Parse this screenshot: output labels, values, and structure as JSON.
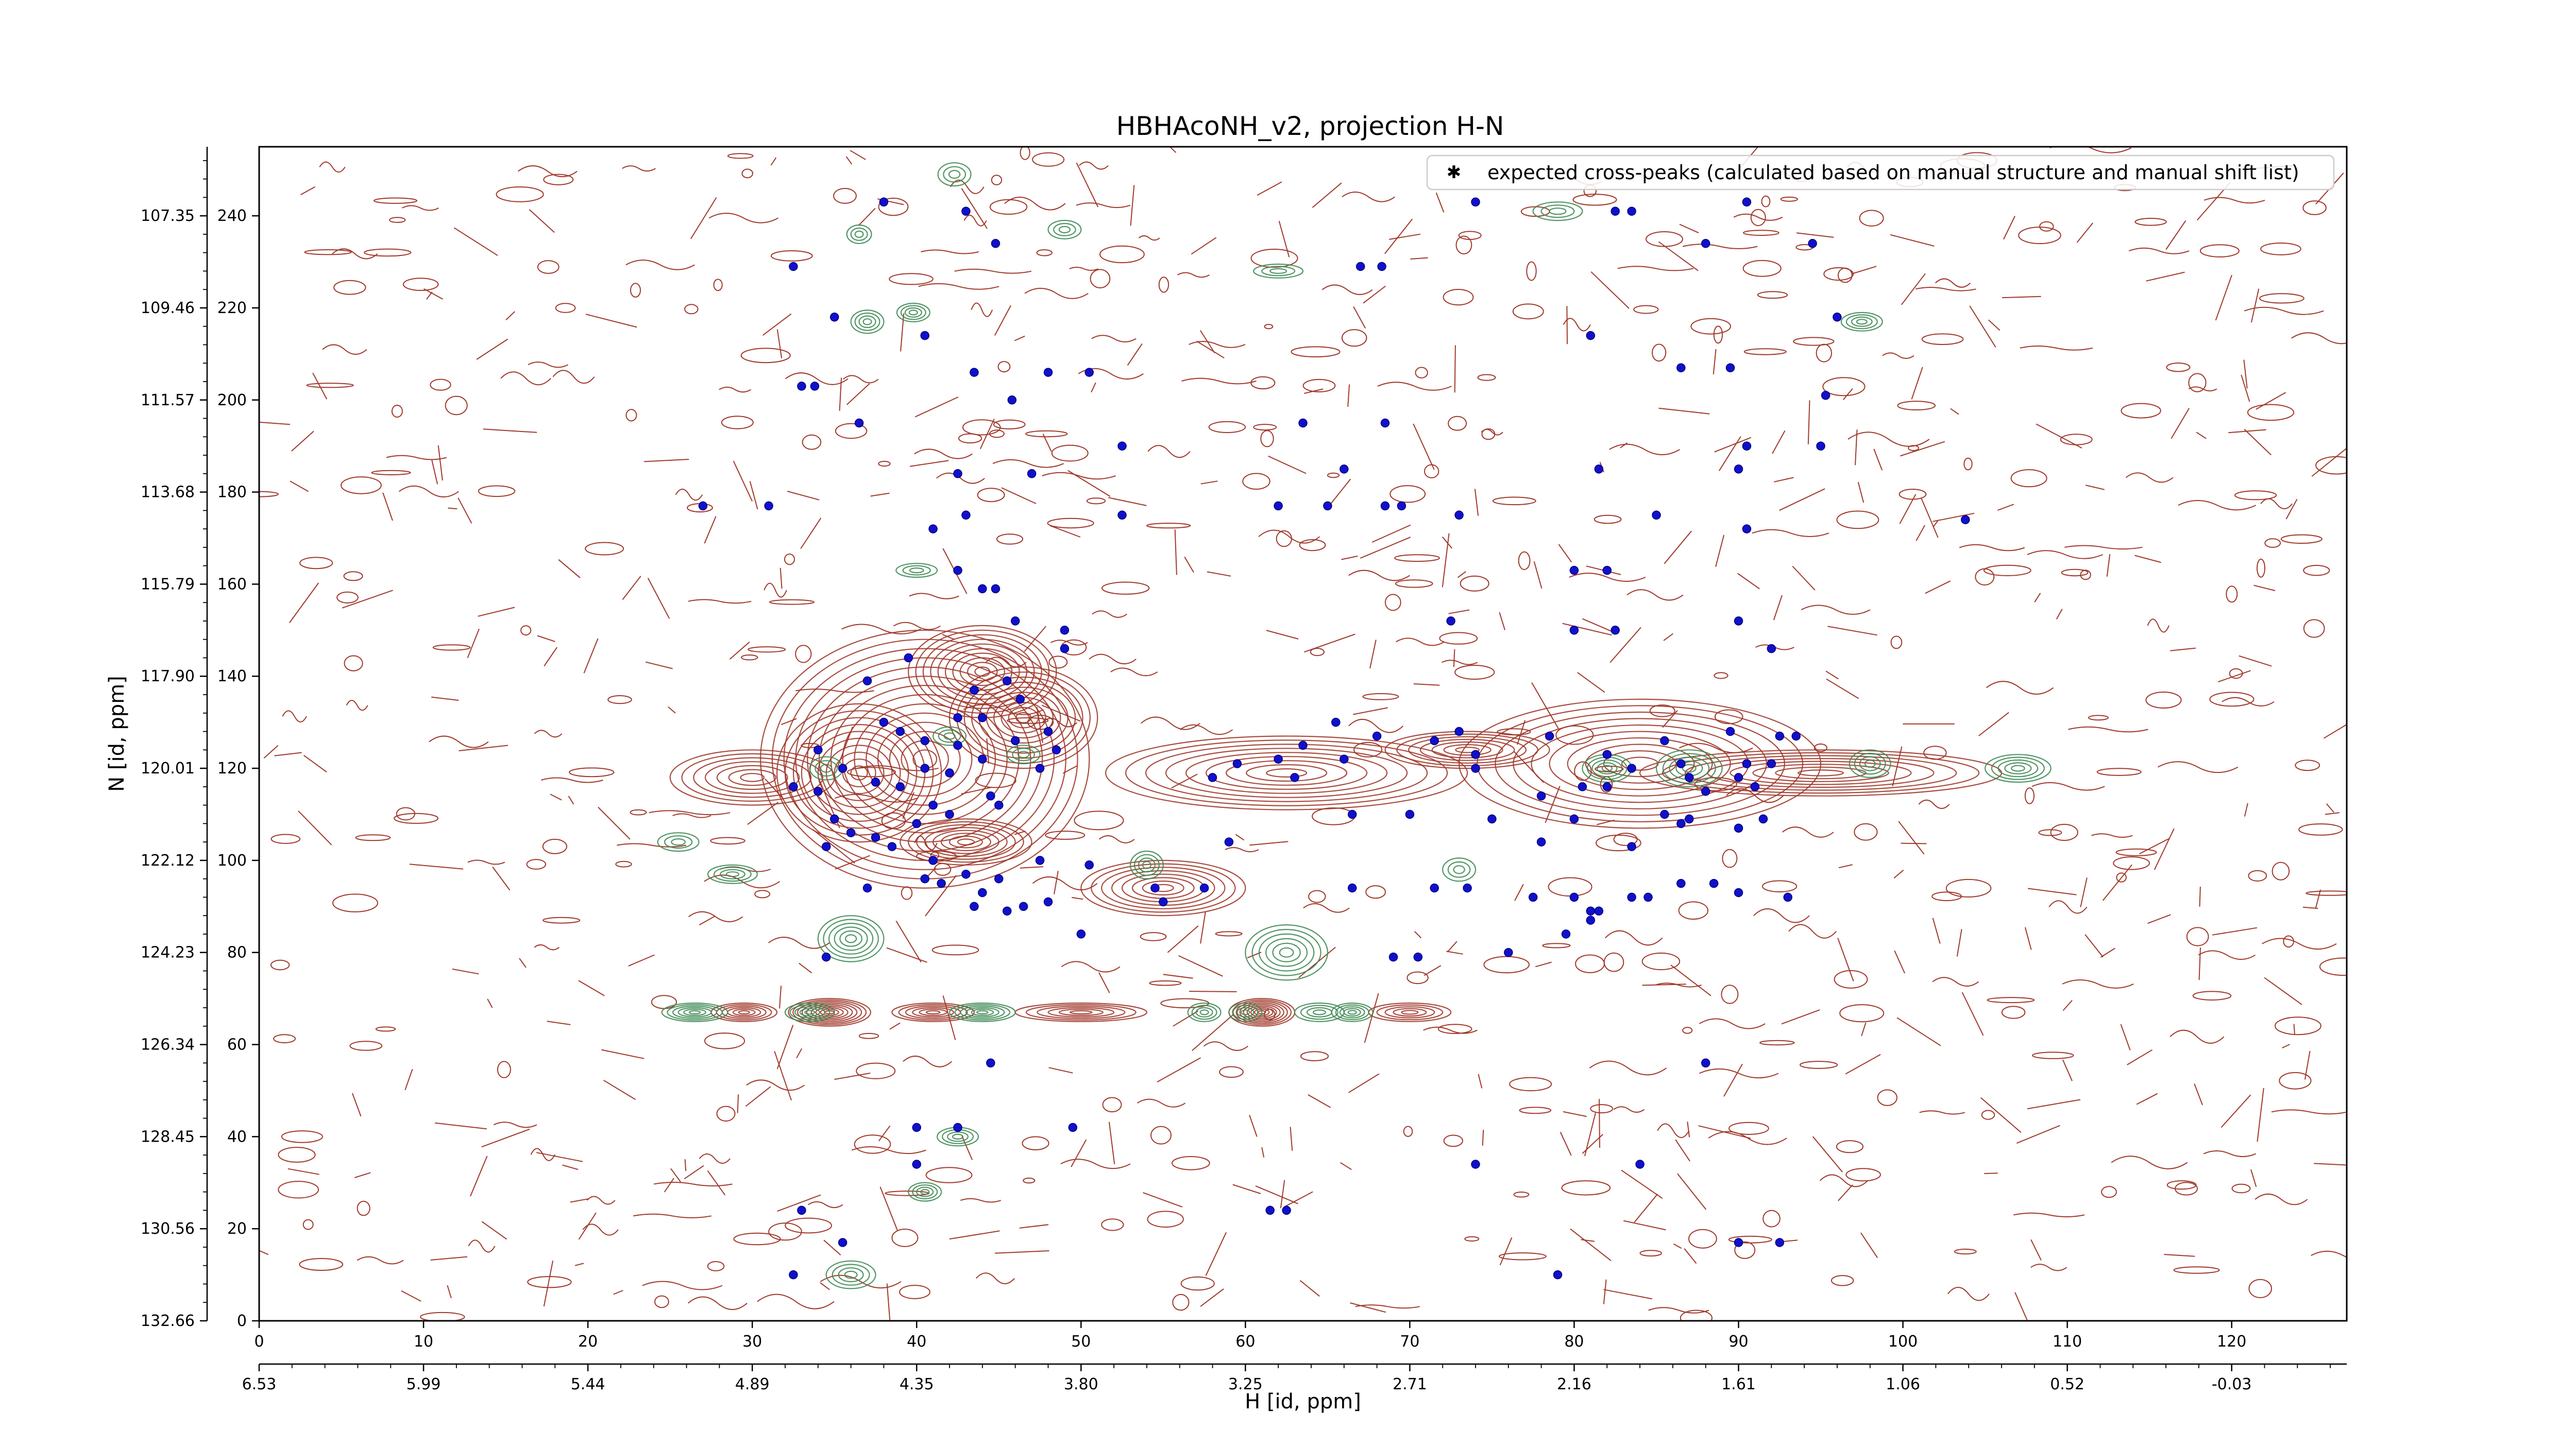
{
  "chart_data": {
    "type": "scatter",
    "title": "HBHAcoNH_v2, projection H-N",
    "xlabel": "H [id, ppm]",
    "ylabel": "N [id, ppm]",
    "xlim": [
      0,
      127
    ],
    "ylim": [
      0,
      255
    ],
    "x_ticks": [
      0,
      10,
      20,
      30,
      40,
      50,
      60,
      70,
      80,
      90,
      100,
      110,
      120
    ],
    "x_ticks_ppm": [
      "6.53",
      "5.99",
      "5.44",
      "4.89",
      "4.35",
      "3.80",
      "3.25",
      "2.71",
      "2.16",
      "1.61",
      "1.06",
      "0.52",
      "-0.03"
    ],
    "y_ticks": [
      0,
      20,
      40,
      60,
      80,
      100,
      120,
      140,
      160,
      180,
      200,
      220,
      240
    ],
    "y_ticks_ppm": [
      "132.66",
      "130.56",
      "128.45",
      "126.34",
      "124.23",
      "122.12",
      "120.01",
      "117.90",
      "115.79",
      "113.68",
      "111.57",
      "109.46",
      "107.35"
    ],
    "legend": {
      "position": "top-right",
      "label": "expected cross-peaks (calculated based on manual structure and manual shift list)"
    },
    "colors": {
      "positive_contours": "#a0392b",
      "negative_contours": "#3f8a55",
      "peaks": "#1010cc"
    },
    "contours": [
      {
        "x": 40.5,
        "y": 122,
        "w": 20,
        "h": 56,
        "sign": "pos",
        "levels": 14
      },
      {
        "x": 36.5,
        "y": 119,
        "w": 10,
        "h": 30,
        "sign": "pos",
        "levels": 10
      },
      {
        "x": 46.5,
        "y": 131,
        "w": 9,
        "h": 22,
        "sign": "pos",
        "levels": 10
      },
      {
        "x": 44,
        "y": 141,
        "w": 9,
        "h": 20,
        "sign": "pos",
        "levels": 10
      },
      {
        "x": 62.5,
        "y": 119,
        "w": 22,
        "h": 16,
        "sign": "pos",
        "levels": 9
      },
      {
        "x": 84,
        "y": 121,
        "w": 22,
        "h": 28,
        "sign": "pos",
        "levels": 10
      },
      {
        "x": 95,
        "y": 119,
        "w": 22,
        "h": 10,
        "sign": "pos",
        "levels": 8
      },
      {
        "x": 55,
        "y": 94,
        "w": 10,
        "h": 12,
        "sign": "pos",
        "levels": 8
      },
      {
        "x": 30,
        "y": 118,
        "w": 10,
        "h": 12,
        "sign": "pos",
        "levels": 7
      },
      {
        "x": 73.5,
        "y": 124,
        "w": 10,
        "h": 8,
        "sign": "pos",
        "levels": 7
      },
      {
        "x": 43,
        "y": 104,
        "w": 8,
        "h": 10,
        "sign": "pos",
        "levels": 8
      },
      {
        "x": 34.7,
        "y": 67,
        "w": 5,
        "h": 6,
        "sign": "pos",
        "levels": 9
      },
      {
        "x": 61,
        "y": 67,
        "w": 4,
        "h": 6,
        "sign": "pos",
        "levels": 9
      },
      {
        "x": 50,
        "y": 67,
        "w": 8,
        "h": 4,
        "sign": "pos",
        "levels": 6
      },
      {
        "x": 41,
        "y": 67,
        "w": 5,
        "h": 4,
        "sign": "pos",
        "levels": 6
      },
      {
        "x": 29.5,
        "y": 67,
        "w": 4,
        "h": 4,
        "sign": "pos",
        "levels": 6
      },
      {
        "x": 70,
        "y": 67,
        "w": 5,
        "h": 4,
        "sign": "pos",
        "levels": 5
      },
      {
        "x": 36,
        "y": 83,
        "w": 4,
        "h": 10,
        "sign": "neg",
        "levels": 6
      },
      {
        "x": 62.5,
        "y": 80,
        "w": 5,
        "h": 12,
        "sign": "neg",
        "levels": 6
      },
      {
        "x": 26.5,
        "y": 67,
        "w": 4,
        "h": 4,
        "sign": "neg",
        "levels": 6
      },
      {
        "x": 33.5,
        "y": 67,
        "w": 3,
        "h": 4,
        "sign": "neg",
        "levels": 5
      },
      {
        "x": 44,
        "y": 67,
        "w": 4,
        "h": 4,
        "sign": "neg",
        "levels": 6
      },
      {
        "x": 57.5,
        "y": 67,
        "w": 2,
        "h": 4,
        "sign": "neg",
        "levels": 4
      },
      {
        "x": 60,
        "y": 67,
        "w": 2,
        "h": 4,
        "sign": "neg",
        "levels": 4
      },
      {
        "x": 64.5,
        "y": 67,
        "w": 3,
        "h": 4,
        "sign": "neg",
        "levels": 4
      },
      {
        "x": 66.5,
        "y": 67,
        "w": 2.5,
        "h": 4,
        "sign": "neg",
        "levels": 5
      },
      {
        "x": 87,
        "y": 120,
        "w": 4,
        "h": 8,
        "sign": "neg",
        "levels": 5
      },
      {
        "x": 82,
        "y": 120,
        "w": 3,
        "h": 6,
        "sign": "neg",
        "levels": 5
      },
      {
        "x": 107,
        "y": 120,
        "w": 4,
        "h": 6,
        "sign": "neg",
        "levels": 5
      },
      {
        "x": 98,
        "y": 121,
        "w": 2.5,
        "h": 6,
        "sign": "neg",
        "levels": 4
      },
      {
        "x": 28.8,
        "y": 97,
        "w": 3,
        "h": 4,
        "sign": "neg",
        "levels": 4
      },
      {
        "x": 42.5,
        "y": 40,
        "w": 2.5,
        "h": 4,
        "sign": "neg",
        "levels": 4
      },
      {
        "x": 40.5,
        "y": 28,
        "w": 2,
        "h": 4,
        "sign": "neg",
        "levels": 4
      },
      {
        "x": 36,
        "y": 10,
        "w": 3,
        "h": 6,
        "sign": "neg",
        "levels": 4
      },
      {
        "x": 37,
        "y": 217,
        "w": 2,
        "h": 5,
        "sign": "neg",
        "levels": 4
      },
      {
        "x": 39.8,
        "y": 219,
        "w": 2,
        "h": 4,
        "sign": "neg",
        "levels": 4
      },
      {
        "x": 49,
        "y": 237,
        "w": 2,
        "h": 4,
        "sign": "neg",
        "levels": 3
      },
      {
        "x": 62,
        "y": 228,
        "w": 3,
        "h": 3,
        "sign": "neg",
        "levels": 3
      },
      {
        "x": 79,
        "y": 241,
        "w": 3,
        "h": 4,
        "sign": "neg",
        "levels": 3
      },
      {
        "x": 97.5,
        "y": 217,
        "w": 2.5,
        "h": 4,
        "sign": "neg",
        "levels": 4
      },
      {
        "x": 40,
        "y": 163,
        "w": 2.5,
        "h": 3,
        "sign": "neg",
        "levels": 3
      },
      {
        "x": 54,
        "y": 99,
        "w": 2,
        "h": 6,
        "sign": "neg",
        "levels": 4
      },
      {
        "x": 73,
        "y": 98,
        "w": 2,
        "h": 5,
        "sign": "neg",
        "levels": 3
      },
      {
        "x": 42,
        "y": 127,
        "w": 2,
        "h": 4,
        "sign": "neg",
        "levels": 3
      },
      {
        "x": 46.5,
        "y": 123,
        "w": 2,
        "h": 4,
        "sign": "neg",
        "levels": 3
      },
      {
        "x": 34.5,
        "y": 120,
        "w": 2,
        "h": 5,
        "sign": "neg",
        "levels": 3
      },
      {
        "x": 25.5,
        "y": 104,
        "w": 2.5,
        "h": 4,
        "sign": "neg",
        "levels": 3
      },
      {
        "x": 36.5,
        "y": 236,
        "w": 1.5,
        "h": 4,
        "sign": "neg",
        "levels": 3
      },
      {
        "x": 42.3,
        "y": 249,
        "w": 2,
        "h": 5,
        "sign": "neg",
        "levels": 3
      }
    ],
    "peaks": [
      {
        "x": 38.0,
        "y": 243
      },
      {
        "x": 43.0,
        "y": 241
      },
      {
        "x": 44.8,
        "y": 234
      },
      {
        "x": 74.0,
        "y": 243
      },
      {
        "x": 82.5,
        "y": 241
      },
      {
        "x": 83.5,
        "y": 241
      },
      {
        "x": 88.0,
        "y": 234
      },
      {
        "x": 90.5,
        "y": 243
      },
      {
        "x": 94.5,
        "y": 234
      },
      {
        "x": 32.5,
        "y": 229
      },
      {
        "x": 67.0,
        "y": 229
      },
      {
        "x": 68.3,
        "y": 229
      },
      {
        "x": 35.0,
        "y": 218
      },
      {
        "x": 40.5,
        "y": 214
      },
      {
        "x": 96.0,
        "y": 218
      },
      {
        "x": 81.0,
        "y": 214
      },
      {
        "x": 33.0,
        "y": 203
      },
      {
        "x": 33.8,
        "y": 203
      },
      {
        "x": 43.5,
        "y": 206
      },
      {
        "x": 48.0,
        "y": 206
      },
      {
        "x": 50.5,
        "y": 206
      },
      {
        "x": 45.8,
        "y": 200
      },
      {
        "x": 36.5,
        "y": 195
      },
      {
        "x": 86.5,
        "y": 207
      },
      {
        "x": 89.5,
        "y": 207
      },
      {
        "x": 95.3,
        "y": 201
      },
      {
        "x": 63.5,
        "y": 195
      },
      {
        "x": 68.5,
        "y": 195
      },
      {
        "x": 52.5,
        "y": 190
      },
      {
        "x": 66.0,
        "y": 185
      },
      {
        "x": 90.5,
        "y": 190
      },
      {
        "x": 95.0,
        "y": 190
      },
      {
        "x": 27.0,
        "y": 177
      },
      {
        "x": 31.0,
        "y": 177
      },
      {
        "x": 42.5,
        "y": 184
      },
      {
        "x": 47.0,
        "y": 184
      },
      {
        "x": 41.0,
        "y": 172
      },
      {
        "x": 43.0,
        "y": 175
      },
      {
        "x": 52.5,
        "y": 175
      },
      {
        "x": 62.0,
        "y": 177
      },
      {
        "x": 65.0,
        "y": 177
      },
      {
        "x": 68.5,
        "y": 177
      },
      {
        "x": 69.5,
        "y": 177
      },
      {
        "x": 73.0,
        "y": 175
      },
      {
        "x": 81.5,
        "y": 185
      },
      {
        "x": 85.0,
        "y": 175
      },
      {
        "x": 90.0,
        "y": 185
      },
      {
        "x": 90.5,
        "y": 172
      },
      {
        "x": 103.8,
        "y": 174
      },
      {
        "x": 42.5,
        "y": 163
      },
      {
        "x": 44.0,
        "y": 159
      },
      {
        "x": 44.8,
        "y": 159
      },
      {
        "x": 46.0,
        "y": 152
      },
      {
        "x": 49.0,
        "y": 150
      },
      {
        "x": 49.0,
        "y": 146
      },
      {
        "x": 80.0,
        "y": 163
      },
      {
        "x": 82.0,
        "y": 163
      },
      {
        "x": 72.5,
        "y": 152
      },
      {
        "x": 80.0,
        "y": 150
      },
      {
        "x": 82.5,
        "y": 150
      },
      {
        "x": 90.0,
        "y": 152
      },
      {
        "x": 92.0,
        "y": 146
      },
      {
        "x": 39.5,
        "y": 144
      },
      {
        "x": 37.0,
        "y": 139
      },
      {
        "x": 45.5,
        "y": 139
      },
      {
        "x": 46.3,
        "y": 135
      },
      {
        "x": 43.5,
        "y": 137
      },
      {
        "x": 42.5,
        "y": 131
      },
      {
        "x": 44.0,
        "y": 131
      },
      {
        "x": 38.0,
        "y": 130
      },
      {
        "x": 39.0,
        "y": 128
      },
      {
        "x": 40.5,
        "y": 126
      },
      {
        "x": 42.5,
        "y": 125
      },
      {
        "x": 48.0,
        "y": 128
      },
      {
        "x": 46.0,
        "y": 126
      },
      {
        "x": 48.5,
        "y": 124
      },
      {
        "x": 44.0,
        "y": 122
      },
      {
        "x": 47.5,
        "y": 120
      },
      {
        "x": 34.0,
        "y": 124
      },
      {
        "x": 35.5,
        "y": 120
      },
      {
        "x": 32.5,
        "y": 116
      },
      {
        "x": 34.0,
        "y": 115
      },
      {
        "x": 37.5,
        "y": 117
      },
      {
        "x": 39.0,
        "y": 116
      },
      {
        "x": 40.5,
        "y": 120
      },
      {
        "x": 41.0,
        "y": 112
      },
      {
        "x": 40.0,
        "y": 108
      },
      {
        "x": 42.0,
        "y": 119
      },
      {
        "x": 44.5,
        "y": 114
      },
      {
        "x": 42.0,
        "y": 110
      },
      {
        "x": 45.0,
        "y": 112
      },
      {
        "x": 36.0,
        "y": 106
      },
      {
        "x": 35.0,
        "y": 109
      },
      {
        "x": 34.5,
        "y": 103
      },
      {
        "x": 37.5,
        "y": 105
      },
      {
        "x": 37.0,
        "y": 94
      },
      {
        "x": 38.5,
        "y": 103
      },
      {
        "x": 40.5,
        "y": 96
      },
      {
        "x": 41.0,
        "y": 100
      },
      {
        "x": 41.5,
        "y": 95
      },
      {
        "x": 43.0,
        "y": 97
      },
      {
        "x": 43.5,
        "y": 90
      },
      {
        "x": 45.0,
        "y": 96
      },
      {
        "x": 44.0,
        "y": 93
      },
      {
        "x": 45.5,
        "y": 89
      },
      {
        "x": 46.5,
        "y": 90
      },
      {
        "x": 47.5,
        "y": 100
      },
      {
        "x": 48.0,
        "y": 91
      },
      {
        "x": 50.5,
        "y": 99
      },
      {
        "x": 50.0,
        "y": 84
      },
      {
        "x": 54.5,
        "y": 94
      },
      {
        "x": 55.0,
        "y": 91
      },
      {
        "x": 59.0,
        "y": 104
      },
      {
        "x": 57.5,
        "y": 94
      },
      {
        "x": 58.0,
        "y": 118
      },
      {
        "x": 59.5,
        "y": 121
      },
      {
        "x": 63.0,
        "y": 118
      },
      {
        "x": 62.0,
        "y": 122
      },
      {
        "x": 63.5,
        "y": 125
      },
      {
        "x": 65.5,
        "y": 130
      },
      {
        "x": 66.0,
        "y": 122
      },
      {
        "x": 66.5,
        "y": 110
      },
      {
        "x": 66.5,
        "y": 94
      },
      {
        "x": 68.0,
        "y": 127
      },
      {
        "x": 70.0,
        "y": 110
      },
      {
        "x": 71.5,
        "y": 126
      },
      {
        "x": 73.0,
        "y": 128
      },
      {
        "x": 74.0,
        "y": 120
      },
      {
        "x": 74.0,
        "y": 123
      },
      {
        "x": 73.5,
        "y": 94
      },
      {
        "x": 71.5,
        "y": 94
      },
      {
        "x": 75.0,
        "y": 109
      },
      {
        "x": 78.5,
        "y": 127
      },
      {
        "x": 78.0,
        "y": 114
      },
      {
        "x": 78.0,
        "y": 104
      },
      {
        "x": 77.5,
        "y": 92
      },
      {
        "x": 80.0,
        "y": 109
      },
      {
        "x": 80.5,
        "y": 116
      },
      {
        "x": 80.0,
        "y": 92
      },
      {
        "x": 82.0,
        "y": 123
      },
      {
        "x": 82.0,
        "y": 116
      },
      {
        "x": 83.5,
        "y": 120
      },
      {
        "x": 83.5,
        "y": 92
      },
      {
        "x": 84.5,
        "y": 92
      },
      {
        "x": 83.5,
        "y": 103
      },
      {
        "x": 85.5,
        "y": 110
      },
      {
        "x": 86.5,
        "y": 108
      },
      {
        "x": 85.5,
        "y": 126
      },
      {
        "x": 87.0,
        "y": 118
      },
      {
        "x": 86.5,
        "y": 121
      },
      {
        "x": 88.0,
        "y": 115
      },
      {
        "x": 87.0,
        "y": 109
      },
      {
        "x": 86.5,
        "y": 95
      },
      {
        "x": 88.5,
        "y": 95
      },
      {
        "x": 89.5,
        "y": 128
      },
      {
        "x": 90.0,
        "y": 118
      },
      {
        "x": 90.5,
        "y": 121
      },
      {
        "x": 90.0,
        "y": 107
      },
      {
        "x": 91.5,
        "y": 109
      },
      {
        "x": 92.0,
        "y": 121
      },
      {
        "x": 92.5,
        "y": 127
      },
      {
        "x": 93.5,
        "y": 127
      },
      {
        "x": 91.0,
        "y": 116
      },
      {
        "x": 93.0,
        "y": 92
      },
      {
        "x": 90.0,
        "y": 93
      },
      {
        "x": 81.0,
        "y": 89
      },
      {
        "x": 81.5,
        "y": 89
      },
      {
        "x": 81.0,
        "y": 87
      },
      {
        "x": 69.0,
        "y": 79
      },
      {
        "x": 70.5,
        "y": 79
      },
      {
        "x": 76.0,
        "y": 80
      },
      {
        "x": 79.5,
        "y": 84
      },
      {
        "x": 34.5,
        "y": 79
      },
      {
        "x": 44.5,
        "y": 56
      },
      {
        "x": 88.0,
        "y": 56
      },
      {
        "x": 40.0,
        "y": 42
      },
      {
        "x": 42.5,
        "y": 42
      },
      {
        "x": 49.5,
        "y": 42
      },
      {
        "x": 40.0,
        "y": 34
      },
      {
        "x": 74.0,
        "y": 34
      },
      {
        "x": 84.0,
        "y": 34
      },
      {
        "x": 33.0,
        "y": 24
      },
      {
        "x": 61.5,
        "y": 24
      },
      {
        "x": 62.5,
        "y": 24
      },
      {
        "x": 35.5,
        "y": 17
      },
      {
        "x": 32.5,
        "y": 10
      },
      {
        "x": 79.0,
        "y": 10
      },
      {
        "x": 90.0,
        "y": 17
      },
      {
        "x": 92.5,
        "y": 17
      }
    ]
  }
}
